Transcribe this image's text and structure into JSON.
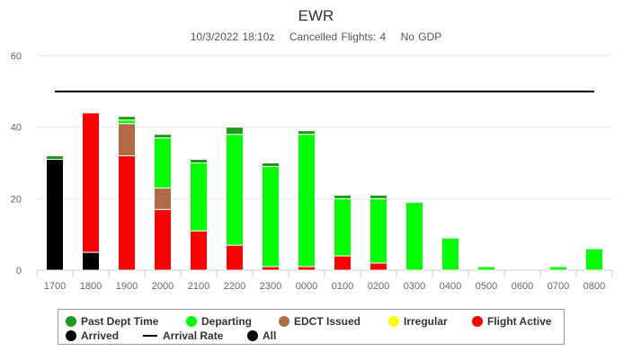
{
  "header": {
    "title": "EWR",
    "timestamp": "10/3/2022 18:10z",
    "cancelled": "Cancelled Flights: 4",
    "gdp": "No GDP"
  },
  "legend": {
    "items": [
      {
        "label": "Past Dept Time",
        "color": "#1a9c1a",
        "kind": "dot"
      },
      {
        "label": "Departing",
        "color": "#00ff00",
        "kind": "dot"
      },
      {
        "label": "EDCT Issued",
        "color": "#b06a45",
        "kind": "dot"
      },
      {
        "label": "Irregular",
        "color": "#ffff00",
        "kind": "dot"
      },
      {
        "label": "Flight Active",
        "color": "#ff0000",
        "kind": "dot"
      },
      {
        "label": "Arrived",
        "color": "#000000",
        "kind": "dot"
      },
      {
        "label": "Arrival Rate",
        "color": "#000000",
        "kind": "line"
      },
      {
        "label": "All",
        "color": "#000000",
        "kind": "dot"
      }
    ]
  },
  "chart_data": {
    "type": "bar",
    "stacked": true,
    "title": "EWR",
    "categories": [
      "1700",
      "1800",
      "1900",
      "2000",
      "2100",
      "2200",
      "2300",
      "0000",
      "0100",
      "0200",
      "0300",
      "0400",
      "0500",
      "0600",
      "0700",
      "0800"
    ],
    "ylim": [
      0,
      60
    ],
    "yticks": [
      0,
      20,
      40,
      60
    ],
    "grid": true,
    "series": [
      {
        "name": "Arrived",
        "color": "#000000",
        "values": [
          31,
          5,
          0,
          0,
          0,
          0,
          0,
          0,
          0,
          0,
          0,
          0,
          0,
          0,
          0,
          0
        ]
      },
      {
        "name": "Flight Active",
        "color": "#ff0000",
        "values": [
          0,
          39,
          32,
          17,
          11,
          7,
          1,
          1,
          4,
          2,
          0,
          0,
          0,
          0,
          0,
          0
        ]
      },
      {
        "name": "EDCT Issued",
        "color": "#b06a45",
        "values": [
          0,
          0,
          9,
          6,
          0,
          0,
          0,
          0,
          0,
          0,
          0,
          0,
          0,
          0,
          0,
          0
        ]
      },
      {
        "name": "Irregular",
        "color": "#ffff00",
        "values": [
          0,
          0,
          0,
          0,
          0,
          0,
          0,
          0,
          0,
          0,
          0,
          0,
          0,
          0,
          0,
          0
        ]
      },
      {
        "name": "Departing",
        "color": "#00ff00",
        "values": [
          0,
          0,
          1,
          14,
          19,
          31,
          28,
          37,
          16,
          18,
          19,
          9,
          1,
          0,
          1,
          6
        ]
      },
      {
        "name": "Past Dept Time",
        "color": "#1a9c1a",
        "values": [
          1,
          0,
          1,
          1,
          1,
          2,
          1,
          1,
          1,
          1,
          0,
          0,
          0,
          0,
          0,
          0
        ]
      }
    ],
    "arrival_rate": {
      "name": "Arrival Rate",
      "color": "#000000",
      "value": 50
    }
  }
}
